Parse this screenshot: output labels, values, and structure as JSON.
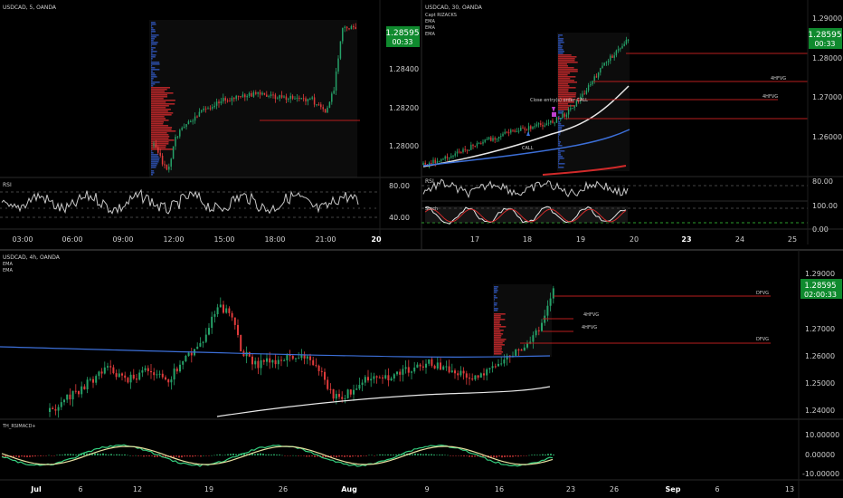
{
  "colors": {
    "bg": "#000000",
    "grid": "#1a1a1a",
    "divider": "#2a2a2a",
    "text": "#cfcfcf",
    "up": "#26a269",
    "down": "#e03b3b",
    "price_bg": "#0f8a2e",
    "ema_white": "#e8e8e8",
    "ema_blue": "#3c6fd8",
    "ema_red": "#d12a2a",
    "fvg_line": "#b81e1e",
    "rsi": "#c8c8c8",
    "macd_green": "#35d07f",
    "macd_yellow": "#e8e0a0"
  },
  "panels": {
    "p5": {
      "title": "USDCAD, 5, OANDA",
      "price": "1.28595",
      "countdown": "00:33",
      "yticks": [
        "1.28400",
        "1.28200",
        "1.28000"
      ],
      "rsi_label": "RSI",
      "rsi_ticks": [
        "80.00",
        "40.00"
      ],
      "xticks": [
        "03:00",
        "06:00",
        "09:00",
        "12:00",
        "15:00",
        "18:00",
        "21:00",
        "20"
      ]
    },
    "p30": {
      "title": "USDCAD, 30, OANDA",
      "legend": [
        "Capt RIZACKS",
        "EMA",
        "EMA",
        "EMA"
      ],
      "price": "1.28595",
      "countdown": "00:33",
      "yticks": [
        "1.29000",
        "1.28000",
        "1.27000",
        "1.26000"
      ],
      "annotations": {
        "fvg1": "4HFVG",
        "fvg2": "4HFVG",
        "close": "Close entry(s) order CALL",
        "call": "CALL"
      },
      "rsi_label": "RSI",
      "rsi_ticks": [
        "80.00"
      ],
      "stoch_label": "Stoch",
      "stoch_ticks": [
        "100.00",
        "0.00"
      ],
      "xticks": [
        "17",
        "18",
        "19",
        "20",
        "23",
        "24",
        "25"
      ]
    },
    "p4h": {
      "title": "USDCAD, 4h, OANDA",
      "legend": [
        "EMA",
        "EMA"
      ],
      "price": "1.28595",
      "countdown": "02:00:33",
      "yticks": [
        "1.29000",
        "1.28000",
        "1.27000",
        "1.26000",
        "1.25000",
        "1.24000"
      ],
      "annotations": {
        "dfvg1": "DFVG",
        "h4a": "4HFVG",
        "h4b": "4HFVG",
        "dfvg2": "DFVG"
      },
      "macd_label": "TH_RSIMACD+",
      "macd_ticks": [
        "10.00000",
        "0.00000",
        "-10.00000"
      ],
      "xticks": [
        "Jul",
        "6",
        "12",
        "19",
        "26",
        "Aug",
        "9",
        "16",
        "23",
        "26",
        "Sep",
        "6",
        "13"
      ]
    }
  },
  "chart_data": [
    {
      "type": "line",
      "title": "USDCAD, 5, OANDA",
      "x": [
        "03:00",
        "06:00",
        "09:00",
        "12:00",
        "15:00",
        "18:00",
        "21:00",
        "20"
      ],
      "ylim": [
        1.278,
        1.2868
      ],
      "series": [
        {
          "values": [
            null,
            null,
            null,
            1.2815,
            1.282,
            1.2825,
            1.2822,
            1.2859
          ]
        }
      ],
      "rsi_ticks": [
        80,
        40
      ]
    },
    {
      "type": "line",
      "title": "USDCAD, 30, OANDA",
      "x": [
        "17",
        "18",
        "19",
        "20",
        "23",
        "24",
        "25"
      ],
      "ylim": [
        1.252,
        1.292
      ],
      "series": [
        {
          "values": [
            1.256,
            1.26,
            1.27,
            1.286,
            null,
            null,
            null
          ]
        }
      ],
      "levels": [
        1.2812,
        1.274,
        1.2695,
        1.265
      ]
    },
    {
      "type": "line",
      "title": "USDCAD, 4h, OANDA",
      "x": [
        "Jul",
        "6",
        "12",
        "19",
        "26",
        "Aug",
        "9",
        "16",
        "23",
        "26",
        "Sep",
        "6",
        "13"
      ],
      "ylim": [
        1.235,
        1.294
      ],
      "series": [
        {
          "values": [
            1.245,
            1.256,
            1.26,
            1.28,
            1.26,
            1.256,
            1.253,
            1.258,
            1.286,
            null,
            null,
            null,
            null
          ]
        }
      ],
      "levels": [
        1.2812,
        1.274,
        1.2695,
        1.265
      ],
      "macd_ticks": [
        10,
        0,
        -10
      ]
    }
  ]
}
